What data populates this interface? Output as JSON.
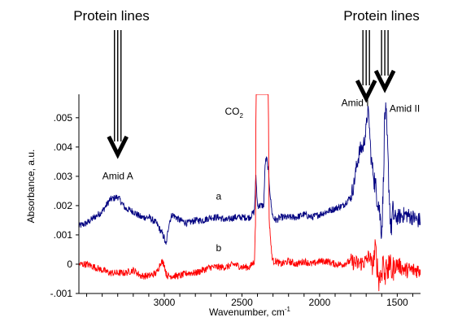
{
  "chart_data": {
    "type": "line",
    "xlabel": "Wavenumber, cm",
    "xlabel_superscript": "-1",
    "ylabel": "Absorbance, a.u.",
    "xlim": [
      3550,
      1350
    ],
    "ylim": [
      -0.001,
      0.0058
    ],
    "x_reversed": true,
    "x_ticks": [
      3000,
      2500,
      2000,
      1500
    ],
    "x_tick_labels": [
      "3000",
      "2500",
      "2000",
      "1500"
    ],
    "y_ticks": [
      -0.001,
      0,
      0.001,
      0.002,
      0.003,
      0.004,
      0.005
    ],
    "y_tick_labels": [
      "-.001",
      "0",
      ".001",
      ".002",
      ".003",
      ".004",
      ".005"
    ],
    "grid": false,
    "series": [
      {
        "name": "a",
        "color": "#000080",
        "x": [
          3550,
          3500,
          3450,
          3400,
          3350,
          3300,
          3250,
          3200,
          3150,
          3100,
          3050,
          3000,
          2990,
          2970,
          2950,
          2900,
          2850,
          2800,
          2750,
          2700,
          2650,
          2600,
          2550,
          2500,
          2450,
          2420,
          2410,
          2400,
          2390,
          2380,
          2370,
          2360,
          2350,
          2340,
          2330,
          2320,
          2310,
          2300,
          2280,
          2250,
          2200,
          2150,
          2100,
          2050,
          2000,
          1950,
          1900,
          1850,
          1800,
          1780,
          1760,
          1740,
          1720,
          1700,
          1690,
          1680,
          1670,
          1660,
          1650,
          1640,
          1620,
          1600,
          1590,
          1580,
          1570,
          1560,
          1550,
          1540,
          1530,
          1520,
          1500,
          1450,
          1400,
          1370
        ],
        "values": [
          0.0013,
          0.0014,
          0.0016,
          0.0018,
          0.0022,
          0.0023,
          0.0019,
          0.0018,
          0.0016,
          0.0016,
          0.0014,
          0.0009,
          0.0006,
          0.0014,
          0.0017,
          0.0015,
          0.0014,
          0.0015,
          0.0015,
          0.0016,
          0.0016,
          0.0015,
          0.0016,
          0.0016,
          0.0016,
          0.0018,
          0.003,
          0.002,
          0.002,
          0.002,
          0.002,
          0.002,
          0.0035,
          0.0036,
          0.0032,
          0.0025,
          0.0019,
          0.0016,
          0.0015,
          0.0016,
          0.0016,
          0.0016,
          0.0017,
          0.0016,
          0.0017,
          0.0018,
          0.0019,
          0.002,
          0.0023,
          0.0027,
          0.0034,
          0.0039,
          0.004,
          0.0046,
          0.0053,
          0.0048,
          0.0037,
          0.0033,
          0.003,
          0.0026,
          0.0021,
          0.0011,
          0.0026,
          0.0053,
          0.0049,
          0.0036,
          0.0022,
          0.0011,
          0.0018,
          0.0016,
          0.0016,
          0.0017,
          0.0016,
          0.0015
        ]
      },
      {
        "name": "b",
        "color": "#ff0000",
        "x": [
          3550,
          3500,
          3450,
          3400,
          3350,
          3300,
          3250,
          3200,
          3150,
          3100,
          3050,
          3020,
          3000,
          2990,
          2980,
          2950,
          2900,
          2850,
          2800,
          2750,
          2700,
          2650,
          2600,
          2550,
          2500,
          2450,
          2420,
          2412,
          2410,
          2400,
          2350,
          2330,
          2325,
          2320,
          2310,
          2300,
          2280,
          2250,
          2200,
          2150,
          2100,
          2050,
          2000,
          1950,
          1900,
          1850,
          1800,
          1750,
          1700,
          1680,
          1660,
          1640,
          1620,
          1600,
          1590,
          1580,
          1570,
          1560,
          1550,
          1540,
          1520,
          1500,
          1450,
          1400,
          1370
        ],
        "values": [
          0.0,
          0.0,
          -0.0001,
          -0.0002,
          -0.0003,
          -0.0003,
          -0.0003,
          -0.0002,
          -0.0004,
          -0.0004,
          -0.0003,
          0.0001,
          0.0,
          -0.0003,
          -0.0004,
          -0.0004,
          -0.0004,
          -0.0003,
          -0.0003,
          -0.0002,
          -0.0001,
          -0.0001,
          -0.0001,
          0.0,
          -0.0001,
          -0.0001,
          0.0001,
          0.0015,
          0.0058,
          0.0058,
          0.0058,
          0.0058,
          0.0015,
          0.0012,
          0.0004,
          0.0001,
          0.0001,
          0.0,
          0.0001,
          0.0,
          0.0001,
          0.0,
          0.0001,
          0.0001,
          0.0,
          0.0,
          0.0001,
          0.0,
          0.0001,
          0.0003,
          -0.0001,
          0.0005,
          -0.0005,
          -0.0003,
          0.0003,
          -0.0007,
          0.0004,
          -0.0005,
          0.0002,
          -0.0003,
          -0.0001,
          0.0,
          -0.0002,
          -0.0002,
          -0.0002
        ]
      }
    ],
    "annotations": [
      {
        "text": "Amid A",
        "x": 3300,
        "y": 0.0029
      },
      {
        "text": "CO",
        "subscript": "2",
        "x": 2610,
        "y": 0.0051
      },
      {
        "text": "Amid I",
        "x": 1860,
        "y": 0.0054
      },
      {
        "text": "Amid II",
        "x": 1550,
        "y": 0.0052
      },
      {
        "text": "a",
        "x": 2650,
        "y": 0.0022
      },
      {
        "text": "b",
        "x": 2650,
        "y": 0.00045
      }
    ],
    "callouts": [
      {
        "text": "Protein lines",
        "arrows_to_x": [
          3300
        ]
      },
      {
        "text": "Protein lines",
        "arrows_to_x": [
          1700,
          1580
        ]
      }
    ]
  }
}
